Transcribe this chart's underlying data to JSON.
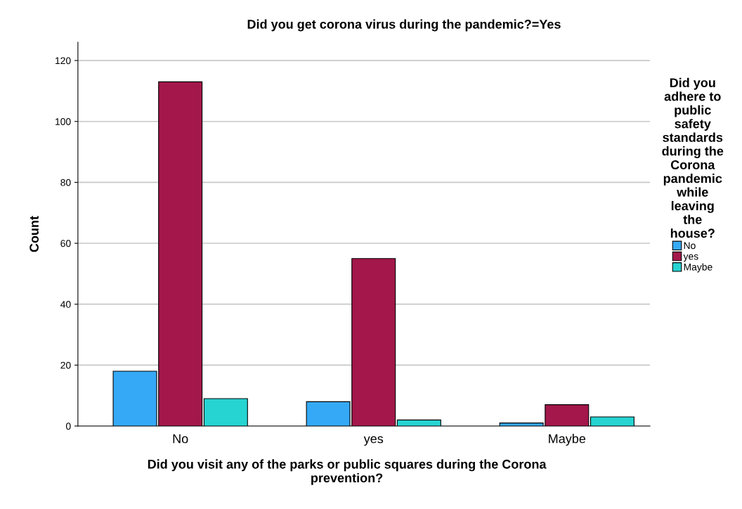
{
  "chart_data": {
    "type": "bar",
    "title": "Did you get corona virus during the pandemic?=Yes",
    "xlabel": "Did you visit any of the parks or public squares during the Corona\nprevention?",
    "ylabel": "Count",
    "legend_title": "Did you\nadhere to\npublic\nsafety\nstandards\nduring the\nCorona\npandemic\nwhile\nleaving\nthe\nhouse?",
    "categories": [
      "No",
      "yes",
      "Maybe"
    ],
    "series": [
      {
        "name": "No",
        "color": "#35a9f5",
        "values": [
          18,
          8,
          1
        ]
      },
      {
        "name": "yes",
        "color": "#a3174a",
        "values": [
          113,
          55,
          7
        ]
      },
      {
        "name": "Maybe",
        "color": "#26d4d2",
        "values": [
          9,
          2,
          3
        ]
      }
    ],
    "ylim": [
      0,
      126
    ],
    "yticks": [
      0,
      20,
      40,
      60,
      80,
      100,
      120
    ],
    "grid": "y",
    "legend": "right"
  }
}
